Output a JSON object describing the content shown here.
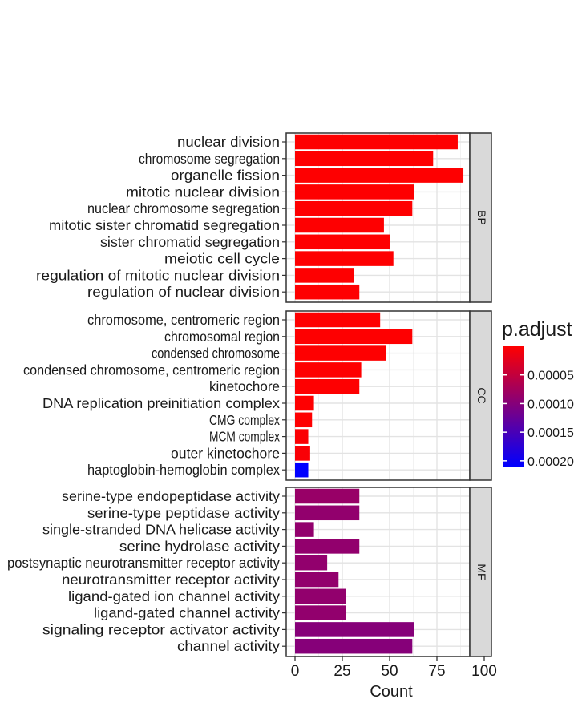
{
  "chart_data": {
    "type": "bar",
    "orientation": "horizontal",
    "xlabel": "Count",
    "xlim": [
      0,
      100
    ],
    "xticks": [
      0,
      25,
      50,
      75,
      100
    ],
    "grid": true,
    "facets": [
      {
        "strip": "BP",
        "bars": [
          {
            "label": "nuclear division",
            "value": 86,
            "p_adjust": 1e-06
          },
          {
            "label": "chromosome segregation",
            "value": 73,
            "p_adjust": 1e-06
          },
          {
            "label": "organelle fission",
            "value": 89,
            "p_adjust": 1e-06
          },
          {
            "label": "mitotic nuclear division",
            "value": 63,
            "p_adjust": 1e-06
          },
          {
            "label": "nuclear chromosome segregation",
            "value": 62,
            "p_adjust": 1e-06
          },
          {
            "label": "mitotic sister chromatid segregation",
            "value": 47,
            "p_adjust": 1e-06
          },
          {
            "label": "sister chromatid segregation",
            "value": 50,
            "p_adjust": 1e-06
          },
          {
            "label": "meiotic cell cycle",
            "value": 52,
            "p_adjust": 1e-06
          },
          {
            "label": "regulation of mitotic nuclear division",
            "value": 31,
            "p_adjust": 1e-06
          },
          {
            "label": "regulation of nuclear division",
            "value": 34,
            "p_adjust": 1e-06
          }
        ]
      },
      {
        "strip": "CC",
        "bars": [
          {
            "label": "chromosome, centromeric region",
            "value": 45,
            "p_adjust": 1e-06
          },
          {
            "label": "chromosomal region",
            "value": 62,
            "p_adjust": 1e-06
          },
          {
            "label": "condensed chromosome",
            "value": 48,
            "p_adjust": 1e-06
          },
          {
            "label": "condensed chromosome, centromeric region",
            "value": 35,
            "p_adjust": 1e-06
          },
          {
            "label": "kinetochore",
            "value": 34,
            "p_adjust": 1e-06
          },
          {
            "label": "DNA replication preinitiation complex",
            "value": 10,
            "p_adjust": 1e-06
          },
          {
            "label": "CMG complex",
            "value": 9,
            "p_adjust": 1e-06
          },
          {
            "label": "MCM complex",
            "value": 7,
            "p_adjust": 3e-06
          },
          {
            "label": "outer kinetochore",
            "value": 8,
            "p_adjust": 5e-06
          },
          {
            "label": "haptoglobin-hemoglobin complex",
            "value": 7,
            "p_adjust": 0.00021
          }
        ]
      },
      {
        "strip": "MF",
        "bars": [
          {
            "label": "serine-type endopeptidase activity",
            "value": 34,
            "p_adjust": 8.5e-05
          },
          {
            "label": "serine-type peptidase activity",
            "value": 34,
            "p_adjust": 9e-05
          },
          {
            "label": "single-stranded DNA helicase activity",
            "value": 10,
            "p_adjust": 9e-05
          },
          {
            "label": "serine hydrolase activity",
            "value": 34,
            "p_adjust": 9e-05
          },
          {
            "label": "postsynaptic neurotransmitter receptor activity",
            "value": 17,
            "p_adjust": 9e-05
          },
          {
            "label": "neurotransmitter receptor activity",
            "value": 23,
            "p_adjust": 9e-05
          },
          {
            "label": "ligand-gated ion channel activity",
            "value": 27,
            "p_adjust": 9e-05
          },
          {
            "label": "ligand-gated channel activity",
            "value": 27,
            "p_adjust": 9e-05
          },
          {
            "label": "signaling receptor activator activity",
            "value": 63,
            "p_adjust": 0.0001
          },
          {
            "label": "channel activity",
            "value": 62,
            "p_adjust": 0.0001
          }
        ]
      }
    ],
    "legend": {
      "title": "p.adjust",
      "placement": "right",
      "ticks": [
        {
          "value": 5e-05,
          "label": "0.00005"
        },
        {
          "value": 0.0001,
          "label": "0.00010"
        },
        {
          "value": 0.00015,
          "label": "0.00015"
        },
        {
          "value": 0.0002,
          "label": "0.00020"
        }
      ],
      "range": [
        0,
        0.00021
      ],
      "color_low": "#ff0000",
      "color_high": "#0000ff"
    }
  }
}
